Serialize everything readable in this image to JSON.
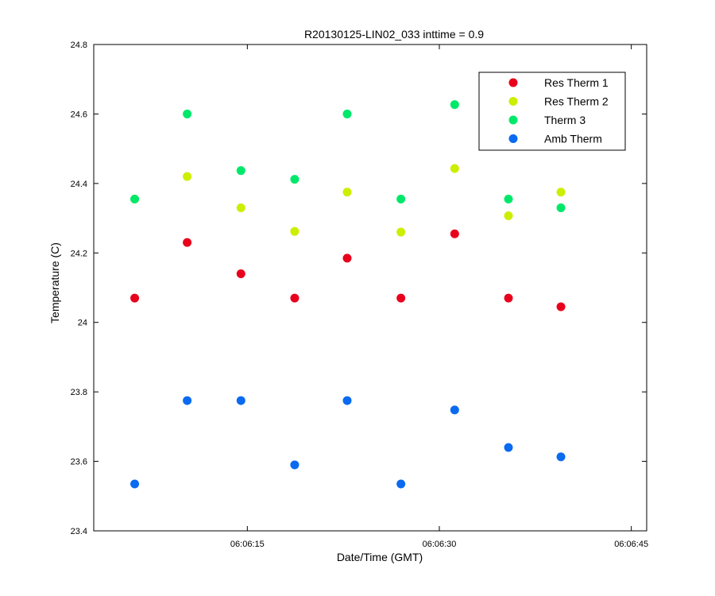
{
  "chart_data": {
    "type": "scatter",
    "title": "R20130125-LIN02_033 inttime = 0.9",
    "xlabel": "Date/Time (GMT)",
    "ylabel": "Temperature (C)",
    "x_ticks": [
      "06:06:15",
      "06:06:30",
      "06:06:45"
    ],
    "x_tick_seconds": [
      15,
      30,
      45
    ],
    "xlim_seconds": [
      3,
      46.2
    ],
    "ylim": [
      23.4,
      24.8
    ],
    "y_ticks": [
      23.4,
      23.6,
      23.8,
      24,
      24.2,
      24.4,
      24.6,
      24.8
    ],
    "y_tick_labels": [
      "23.4",
      "23.6",
      "23.8",
      "24",
      "24.2",
      "24.4",
      "24.6",
      "24.8"
    ],
    "grid": false,
    "legend_position": "top-right",
    "x_seconds": [
      6.2,
      10.3,
      14.5,
      18.7,
      22.8,
      27.0,
      31.2,
      35.4,
      39.5
    ],
    "series": [
      {
        "name": "Res Therm 1",
        "color": "#e8001c",
        "values": [
          24.07,
          24.23,
          24.14,
          24.07,
          24.185,
          24.07,
          24.255,
          24.07,
          24.045
        ]
      },
      {
        "name": "Res Therm 2",
        "color": "#ccee00",
        "values": [
          24.355,
          24.42,
          24.33,
          24.262,
          24.375,
          24.26,
          24.443,
          24.307,
          24.375
        ]
      },
      {
        "name": "Therm 3",
        "color": "#00e86a",
        "values": [
          24.355,
          24.6,
          24.437,
          24.412,
          24.6,
          24.355,
          24.627,
          24.355,
          24.33
        ]
      },
      {
        "name": "Amb Therm",
        "color": "#0a6af0",
        "values": [
          23.535,
          23.775,
          23.775,
          23.59,
          23.775,
          23.535,
          23.748,
          23.64,
          23.613
        ]
      }
    ]
  }
}
